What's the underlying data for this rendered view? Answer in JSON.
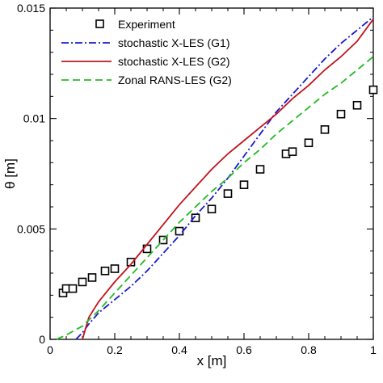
{
  "chart_data": {
    "type": "line",
    "xlabel": "x [m]",
    "ylabel": "θ [m]",
    "xlim": [
      0,
      1
    ],
    "ylim": [
      0,
      0.015
    ],
    "x_ticks": [
      0,
      0.2,
      0.4,
      0.6,
      0.8,
      1
    ],
    "x_tick_labels": [
      "0",
      "0.2",
      "0.4",
      "0.6",
      "0.8",
      "1"
    ],
    "y_ticks": [
      0,
      0.005,
      0.01,
      0.015
    ],
    "y_tick_labels": [
      "0",
      "0.005",
      "0.01",
      "0.015"
    ],
    "grid": false,
    "legend_position": "top-left",
    "series": [
      {
        "name": "Experiment",
        "style": "square-markers",
        "color": "#000000",
        "x": [
          0.04,
          0.05,
          0.07,
          0.1,
          0.13,
          0.17,
          0.2,
          0.25,
          0.3,
          0.35,
          0.4,
          0.45,
          0.5,
          0.55,
          0.6,
          0.65,
          0.73,
          0.75,
          0.8,
          0.85,
          0.9,
          0.95,
          1.0
        ],
        "y": [
          0.0021,
          0.0023,
          0.0023,
          0.0026,
          0.0028,
          0.0031,
          0.0032,
          0.0035,
          0.0041,
          0.0045,
          0.0049,
          0.0055,
          0.0059,
          0.0066,
          0.007,
          0.0077,
          0.0084,
          0.0085,
          0.0089,
          0.0095,
          0.0102,
          0.0106,
          0.0113
        ]
      },
      {
        "name": "stochastic X-LES (G1)",
        "style": "dash-dot",
        "color": "#1a1acc",
        "x": [
          0.08,
          0.1,
          0.12,
          0.15,
          0.2,
          0.25,
          0.3,
          0.35,
          0.4,
          0.45,
          0.5,
          0.55,
          0.6,
          0.65,
          0.7,
          0.75,
          0.8,
          0.85,
          0.9,
          0.95,
          1.0
        ],
        "y": [
          0.0,
          0.0003,
          0.0007,
          0.0012,
          0.0018,
          0.0024,
          0.0031,
          0.0039,
          0.0047,
          0.0056,
          0.0064,
          0.0073,
          0.0083,
          0.0093,
          0.0103,
          0.0111,
          0.0119,
          0.0127,
          0.0134,
          0.014,
          0.0146
        ]
      },
      {
        "name": "stochastic X-LES (G2)",
        "style": "solid",
        "color": "#c0141c",
        "x": [
          0.1,
          0.12,
          0.15,
          0.2,
          0.25,
          0.3,
          0.35,
          0.4,
          0.45,
          0.5,
          0.55,
          0.6,
          0.65,
          0.7,
          0.75,
          0.8,
          0.85,
          0.9,
          0.95,
          1.0
        ],
        "y": [
          0.0,
          0.001,
          0.0017,
          0.0026,
          0.0034,
          0.0043,
          0.0052,
          0.0061,
          0.0069,
          0.0077,
          0.0084,
          0.009,
          0.0096,
          0.0102,
          0.0109,
          0.0115,
          0.0122,
          0.0128,
          0.0135,
          0.0145
        ]
      },
      {
        "name": "Zonal RANS-LES (G2)",
        "style": "dashed",
        "color": "#22bb22",
        "x": [
          0.02,
          0.05,
          0.1,
          0.15,
          0.2,
          0.25,
          0.3,
          0.35,
          0.4,
          0.45,
          0.5,
          0.55,
          0.6,
          0.65,
          0.7,
          0.75,
          0.8,
          0.85,
          0.9,
          0.95,
          1.0
        ],
        "y": [
          0.0,
          0.0002,
          0.0006,
          0.0013,
          0.0021,
          0.0029,
          0.0037,
          0.0045,
          0.0053,
          0.006,
          0.0067,
          0.0073,
          0.008,
          0.0086,
          0.0093,
          0.0099,
          0.0105,
          0.0111,
          0.0116,
          0.0122,
          0.0128
        ]
      }
    ]
  }
}
